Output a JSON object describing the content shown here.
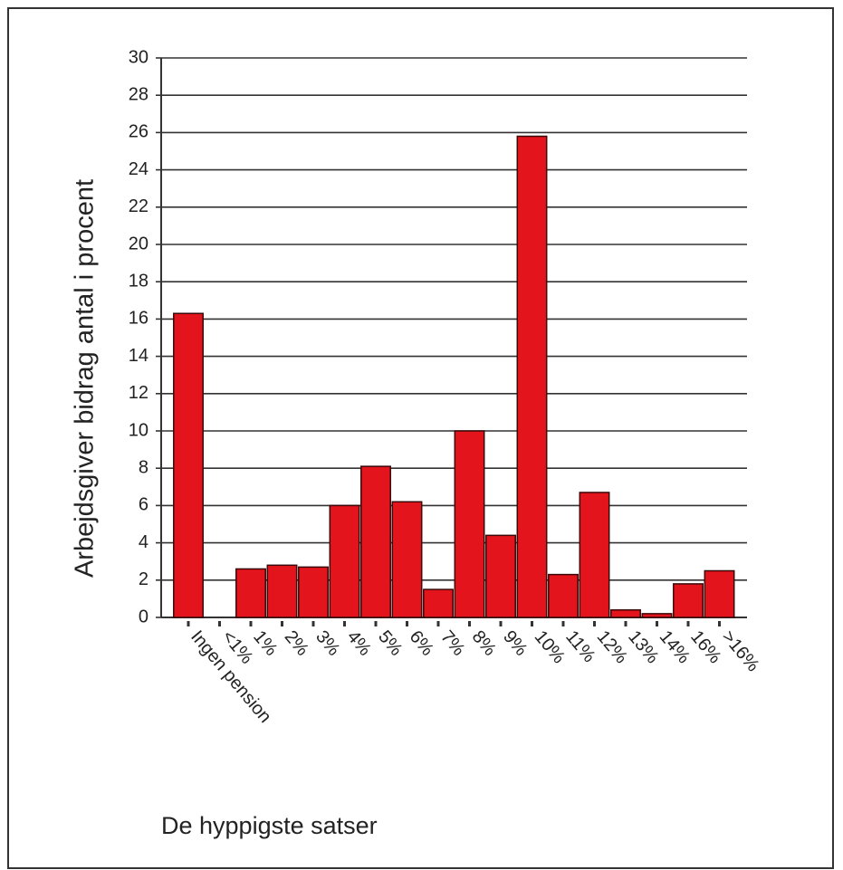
{
  "chart_data": {
    "type": "bar",
    "y_label": "Arbejdsgiver bidrag antal i procent",
    "x_label": "De hyppigste satser",
    "categories": [
      "Ingen pension",
      "<1%",
      "1%",
      "2%",
      "3%",
      "4%",
      "5%",
      "6%",
      "7%",
      "8%",
      "9%",
      "10%",
      "11%",
      "12%",
      "13%",
      "14%",
      "16%",
      ">16%"
    ],
    "values": [
      16.3,
      0,
      2.6,
      2.8,
      2.7,
      6.0,
      8.1,
      6.2,
      1.5,
      10.0,
      4.4,
      25.8,
      2.3,
      6.7,
      0.4,
      0.2,
      1.8,
      2.5
    ],
    "color": "#e3141c",
    "ylim": [
      0,
      30
    ],
    "yticks": [
      0,
      2,
      4,
      6,
      8,
      10,
      12,
      14,
      16,
      18,
      20,
      22,
      24,
      26,
      28,
      30
    ],
    "grid": true
  }
}
